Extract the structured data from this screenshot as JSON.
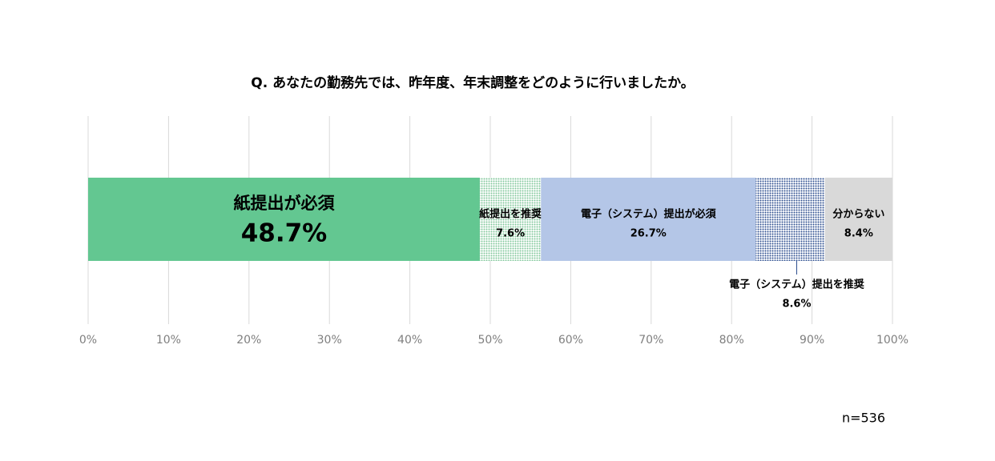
{
  "chart_data": {
    "type": "stacked_bar_horizontal",
    "title": "Q. あなたの勤務先では、昨年度、年末調整をどのように行いましたか。",
    "series": [
      {
        "name": "紙提出が必須",
        "color": "#63c791",
        "values": [
          48.7
        ],
        "value_labels": [
          "48.7%"
        ]
      },
      {
        "name": "紙提出を推奨",
        "color": "#7fc79a",
        "pattern": "dots",
        "values": [
          7.6
        ],
        "value_labels": [
          "7.6%"
        ]
      },
      {
        "name": "電子（システム）提出が必須",
        "color": "#b4c6e7",
        "values": [
          26.7
        ],
        "value_labels": [
          "26.7%"
        ]
      },
      {
        "name": "電子（システム）提出を推奨",
        "color": "#2e4f8f",
        "pattern": "dots",
        "values": [
          8.6
        ],
        "value_labels": [
          "8.6%"
        ]
      },
      {
        "name": "分からない",
        "color": "#d9d9d9",
        "values": [
          8.4
        ],
        "value_labels": [
          "8.4%"
        ]
      }
    ],
    "xlim": [
      0,
      100
    ],
    "xticks": [
      {
        "value": 0,
        "label": "0%"
      },
      {
        "value": 10,
        "label": "10%"
      },
      {
        "value": 20,
        "label": "20%"
      },
      {
        "value": 30,
        "label": "30%"
      },
      {
        "value": 40,
        "label": "40%"
      },
      {
        "value": 50,
        "label": "50%"
      },
      {
        "value": 60,
        "label": "60%"
      },
      {
        "value": 70,
        "label": "70%"
      },
      {
        "value": 80,
        "label": "80%"
      },
      {
        "value": 90,
        "label": "90%"
      },
      {
        "value": 100,
        "label": "100%"
      }
    ],
    "grid": true,
    "note": "n=536"
  }
}
